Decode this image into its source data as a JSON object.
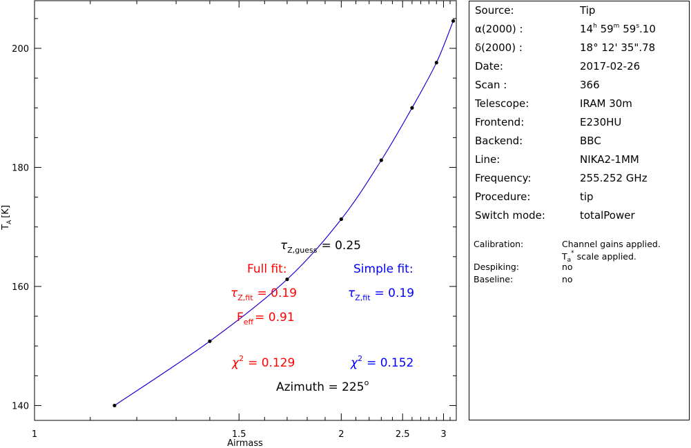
{
  "chart_data": {
    "type": "scatter",
    "xlabel": "Airmass",
    "ylabel": "T",
    "ylabel_sub": "A",
    "ylabel_unit": "[K]",
    "xscale": "reciprocal",
    "xlim": [
      1.0,
      3.2
    ],
    "ylim": [
      137.5,
      208.0
    ],
    "x_ticks": [
      "1",
      "1.5",
      "2",
      "2.5",
      "3"
    ],
    "x_tick_values": [
      1,
      1.5,
      2,
      2.5,
      3
    ],
    "y_ticks": [
      "140",
      "160",
      "180",
      "200"
    ],
    "y_tick_values": [
      140,
      160,
      180,
      200
    ],
    "grid": false,
    "points": {
      "x": [
        1.15,
        1.4,
        1.7,
        2.0,
        2.3,
        2.6,
        2.9,
        3.15
      ],
      "y": [
        140.0,
        150.8,
        161.2,
        171.3,
        181.2,
        190.0,
        197.6,
        204.6
      ]
    },
    "series": [
      {
        "name": "Full fit",
        "color": "#ff0000"
      },
      {
        "name": "Simple fit",
        "color": "#0000ff"
      }
    ],
    "annotations": {
      "tau_guess_sym": "τ",
      "tau_guess_sub": "Z,guess",
      "tau_guess_val": "= 0.25",
      "full_title": "Full fit:",
      "full_tau_sym": "τ",
      "full_tau_sub": "Z,fit",
      "full_tau_val": "= 0.19",
      "full_feff_sym": "F",
      "full_feff_sub": "eff",
      "full_feff_val": "= 0.91",
      "full_chi_sym": "χ",
      "full_chi_sup": "2",
      "full_chi_val": "= 0.129",
      "simple_title": "Simple fit:",
      "simple_tau_sym": "τ",
      "simple_tau_sub": "Z,fit",
      "simple_tau_val": "= 0.19",
      "simple_chi_sym": "χ",
      "simple_chi_sup": "2",
      "simple_chi_val": "= 0.152",
      "azimuth_text": "Azimuth = 225",
      "azimuth_sup": "o"
    },
    "colors": {
      "full": "#ff0000",
      "simple": "#0000ff",
      "axes": "#000000",
      "text": "#000000"
    }
  },
  "info": {
    "source_label": "Source:",
    "source_value": "Tip",
    "ra_label": "α(2000) :",
    "ra_h": "14",
    "ra_h_unit": "h",
    "ra_m": " 59",
    "ra_m_unit": "m",
    "ra_s": " 59",
    "ra_s_unit": "s",
    "ra_frac": ".10",
    "dec_label": "δ(2000) :",
    "dec_value": "18° 12' 35\".78",
    "date_label": "Date:",
    "date_value": "2017-02-26",
    "scan_label": "Scan :",
    "scan_value": "366",
    "telescope_label": "Telescope:",
    "telescope_value": "IRAM 30m",
    "frontend_label": "Frontend:",
    "frontend_value": "E230HU",
    "backend_label": "Backend:",
    "backend_value": "BBC",
    "line_label": "Line:",
    "line_value": "NIKA2-1MM",
    "frequency_label": "Frequency:",
    "frequency_value": "255.252 GHz",
    "procedure_label": "Procedure:",
    "procedure_value": "tip",
    "switch_label": "Switch mode:",
    "switch_value": "totalPower",
    "calibration_label": "Calibration:",
    "calibration_value1": "Channel gains applied.",
    "calibration_t": "T",
    "calibration_t_sub": "a",
    "calibration_t_sup": "*",
    "calibration_value2": " scale applied.",
    "despiking_label": "Despiking:",
    "despiking_value": "no",
    "baseline_label": "Baseline:",
    "baseline_value": "no"
  }
}
